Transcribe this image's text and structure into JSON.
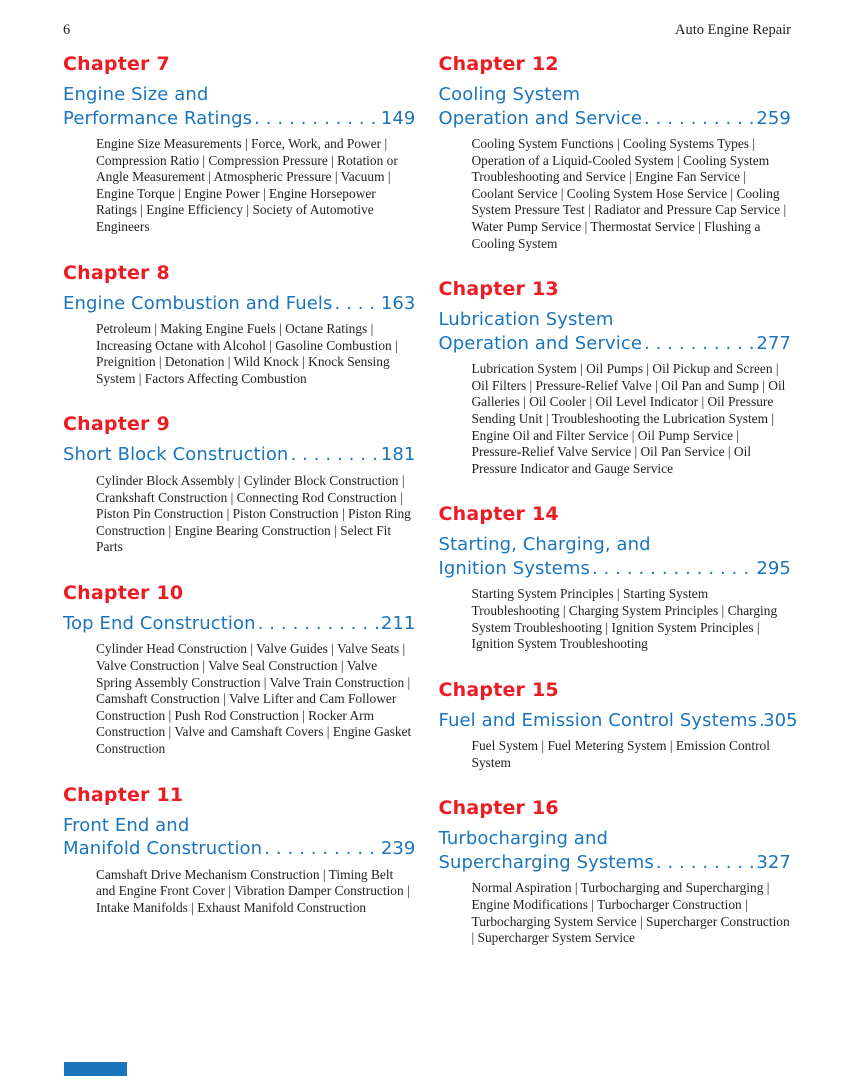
{
  "colors": {
    "chapter_red": "#EC1C24",
    "title_blue": "#1B75BC",
    "body_ink": "#231F20"
  },
  "header": {
    "page_number": "6",
    "running_title": "Auto Engine Repair"
  },
  "chapters": [
    {
      "number": "Chapter 7",
      "title_pre": "Engine Size and",
      "title_main": "Performance Ratings",
      "dots": ". . . . . . . . . . . . . . . . . . . . . .",
      "page": "149",
      "topics": "Engine Size Measurements | Force, Work, and Power | Compression Ratio | Compression Pressure | Rotation or Angle Measurement | Atmospheric Pressure | Vacuum | Engine Torque | Engine Power | Engine Horsepower Ratings | Engine Efficiency | Society of Automotive Engineers"
    },
    {
      "number": "Chapter 8",
      "title_pre": "",
      "title_main": "Engine Combustion and Fuels",
      "dots": " . . . . . . . . . . . . . . . . . . . . .",
      "page": "163",
      "topics": "Petroleum | Making Engine Fuels | Octane Ratings | Increasing Octane with Alcohol | Gasoline Combustion | Preignition | Detonation | Wild Knock | Knock Sensing System | Factors Affecting Combustion"
    },
    {
      "number": "Chapter 9",
      "title_pre": "",
      "title_main": "Short Block Construction",
      "dots": ". . . . . . . . . . . . . . . . . . . . . .",
      "page": "181",
      "topics": "Cylinder Block Assembly | Cylinder Block Construction | Crankshaft Construction | Connecting Rod Construction | Piston Pin Construction | Piston Construction | Piston Ring Construction | Engine Bearing Construction | Select Fit Parts"
    },
    {
      "number": "Chapter 10",
      "title_pre": "",
      "title_main": "Top End Construction",
      "dots": " . . . . . . . . . . . . . . . . . . . . .",
      "page": "211",
      "topics": "Cylinder Head Construction | Valve Guides | Valve Seats | Valve Construction | Valve Seal Construction | Valve Spring Assembly Construction | Valve Train Construction | Camshaft Construction | Valve Lifter and Cam Follower Construction | Push Rod Construction | Rocker Arm Construction | Valve and Camshaft Covers | Engine Gasket Construction"
    },
    {
      "number": "Chapter 11",
      "title_pre": "Front End and",
      "title_main": "Manifold Construction",
      "dots": " . . . . . . . . . . . . . . . . . . . . .",
      "page": "239",
      "topics": "Camshaft Drive Mechanism Construction | Timing Belt and Engine Front Cover | Vibration Damper Construction | Intake Manifolds | Exhaust Manifold Construction"
    },
    {
      "number": "Chapter 12",
      "title_pre": "Cooling System",
      "title_main": "Operation and Service",
      "dots": " . . . . . . . . . . . . . . . . . . . . .",
      "page": "259",
      "topics": "Cooling System Functions | Cooling Systems Types | Operation of a Liquid-Cooled System | Cooling System Troubleshooting and Service | Engine Fan Service | Coolant Service | Cooling System Hose Service | Cooling System Pressure Test | Radiator and Pressure Cap Service | Water Pump Service | Thermostat Service | Flushing a Cooling System"
    },
    {
      "number": "Chapter 13",
      "title_pre": "Lubrication System",
      "title_main": "Operation and Service",
      "dots": " . . . . . . . . . . . . . . . . . . . . .",
      "page": "277",
      "topics": "Lubrication System | Oil Pumps | Oil Pickup and Screen | Oil Filters | Pressure-Relief Valve | Oil Pan and Sump | Oil Galleries | Oil Cooler | Oil Level Indicator | Oil Pressure Sending Unit | Troubleshooting the Lubrication System | Engine Oil and Filter Service | Oil Pump Service | Pressure-Relief Valve Service | Oil Pan Service | Oil Pressure Indicator and Gauge Service"
    },
    {
      "number": "Chapter 14",
      "title_pre": "Starting, Charging, and",
      "title_main": "Ignition Systems",
      "dots": ". . . . . . . . . . . . . . . . . . . . . .",
      "page": "295",
      "topics": "Starting System Principles | Starting System Troubleshooting | Charging System Principles | Charging System Troubleshooting | Ignition System Principles | Ignition System Troubleshooting"
    },
    {
      "number": "Chapter 15",
      "title_pre": "",
      "title_main": "Fuel and Emission Control Systems",
      "dots": "  . . . . . . . . . . . . . . . . . . . .",
      "page": "305",
      "topics": "Fuel System | Fuel Metering System | Emission Control System"
    },
    {
      "number": "Chapter 16",
      "title_pre": "Turbocharging and",
      "title_main": "Supercharging Systems",
      "dots": ". . . . . . . . . . . . . . . . . . . . . .",
      "page": "327",
      "topics": "Normal Aspiration | Turbocharging and Supercharging | Engine Modifications | Turbocharger Construction | Turbocharging System Service | Supercharger Construction | Supercharger System Service"
    }
  ]
}
